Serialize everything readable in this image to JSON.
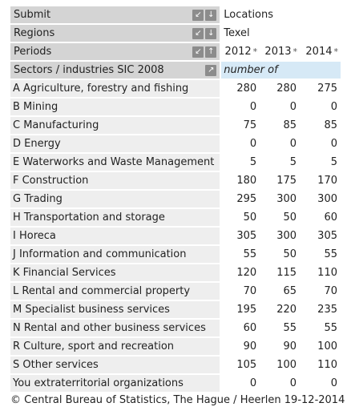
{
  "header": {
    "submit": {
      "label": "Submit",
      "value": "Locations"
    },
    "regions": {
      "label": "Regions",
      "value": "Texel"
    },
    "periods": {
      "label": "Periods",
      "years": [
        "2012",
        "2013",
        "2014"
      ],
      "star": "*"
    },
    "sectors": {
      "label": "Sectors / industries SIC 2008",
      "unit": "number of"
    }
  },
  "icons": {
    "pivot_left": "↙",
    "pivot_down": "↓",
    "pivot_up": "↑",
    "expand": "↗"
  },
  "rows": [
    {
      "label": "A Agriculture, forestry and fishing",
      "values": [
        "280",
        "280",
        "275"
      ]
    },
    {
      "label": "B Mining",
      "values": [
        "0",
        "0",
        "0"
      ]
    },
    {
      "label": "C Manufacturing",
      "values": [
        "75",
        "85",
        "85"
      ]
    },
    {
      "label": "D Energy",
      "values": [
        "0",
        "0",
        "0"
      ]
    },
    {
      "label": "E Waterworks and Waste Management",
      "values": [
        "5",
        "5",
        "5"
      ]
    },
    {
      "label": "F Construction",
      "values": [
        "180",
        "175",
        "170"
      ]
    },
    {
      "label": "G Trading",
      "values": [
        "295",
        "300",
        "300"
      ]
    },
    {
      "label": "H Transportation and storage",
      "values": [
        "50",
        "50",
        "60"
      ]
    },
    {
      "label": "I Horeca",
      "values": [
        "305",
        "300",
        "305"
      ]
    },
    {
      "label": "J Information and communication",
      "values": [
        "55",
        "50",
        "55"
      ]
    },
    {
      "label": "K Financial Services",
      "values": [
        "120",
        "115",
        "110"
      ]
    },
    {
      "label": "L Rental and commercial property",
      "values": [
        "70",
        "65",
        "70"
      ]
    },
    {
      "label": "M Specialist business services",
      "values": [
        "195",
        "220",
        "235"
      ]
    },
    {
      "label": "N Rental and other business services",
      "values": [
        "60",
        "55",
        "55"
      ]
    },
    {
      "label": "R Culture, sport and recreation",
      "values": [
        "90",
        "90",
        "100"
      ]
    },
    {
      "label": "S Other services",
      "values": [
        "105",
        "100",
        "110"
      ]
    },
    {
      "label": "You extraterritorial organizations",
      "values": [
        "0",
        "0",
        "0"
      ]
    }
  ],
  "footer": "© Central Bureau of Statistics, The Hague / Heerlen 19-12-2014"
}
